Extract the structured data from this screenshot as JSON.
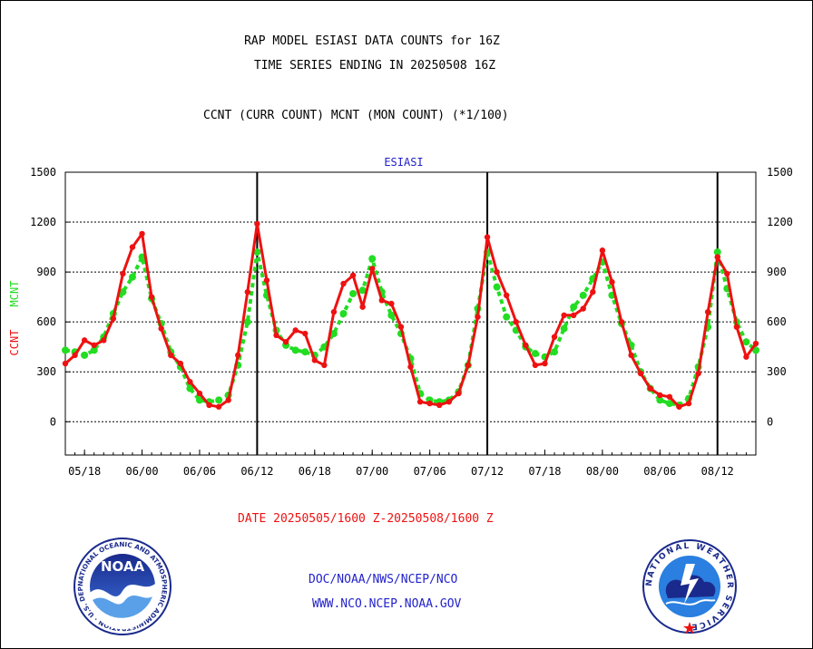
{
  "title_line1": "RAP MODEL ESIASI DATA COUNTS for 16Z",
  "title_line2": "TIME SERIES ENDING IN 20250508 16Z",
  "subtitle": "CCNT (CURR COUNT) MCNT (MON COUNT) (*1/100)",
  "panel_label": "ESIASI",
  "date_range": "DATE 20250505/1600 Z-20250508/1600 Z",
  "footer_line1": "DOC/NOAA/NWS/NCEP/NCO",
  "footer_line2": "WWW.NCO.NCEP.NOAA.GOV",
  "noaa_logo_text": "NOAA",
  "noaa_ring_text": "NATIONAL OCEANIC AND ATMOSPHERIC ADMINISTRATION · U.S. DEPARTMENT OF COMMERCE",
  "nws_ring_text": "NATIONAL WEATHER SERVICE",
  "colors": {
    "ccnt": "#ee1111",
    "mcnt": "#22dd22",
    "axis": "#000000",
    "text_blue": "#2222cc"
  },
  "chart_data": {
    "type": "line",
    "ylim": [
      -200,
      1500
    ],
    "yticks": [
      0,
      300,
      600,
      900,
      1200,
      1500
    ],
    "ylabel_left": [
      {
        "text": "CCNT",
        "color": "#ee1111"
      },
      {
        "text": "MCNT",
        "color": "#22dd22"
      }
    ],
    "x_tick_labels": [
      "05/18",
      "06/00",
      "06/06",
      "06/12",
      "06/18",
      "07/00",
      "07/06",
      "07/12",
      "07/18",
      "08/00",
      "08/06",
      "08/12"
    ],
    "x_tick_hours": [
      2,
      8,
      14,
      20,
      26,
      32,
      38,
      44,
      50,
      56,
      62,
      68
    ],
    "x_range_hours": [
      0,
      72
    ],
    "day_boundaries_hours": [
      20,
      44,
      68
    ],
    "grid": true,
    "series": [
      {
        "name": "CCNT",
        "color": "#ee1111",
        "x": [
          0,
          1,
          2,
          3,
          4,
          5,
          6,
          7,
          8,
          9,
          10,
          11,
          12,
          13,
          14,
          15,
          16,
          17,
          18,
          19,
          20,
          21,
          22,
          23,
          24,
          25,
          26,
          27,
          28,
          29,
          30,
          31,
          32,
          33,
          34,
          35,
          36,
          37,
          38,
          39,
          40,
          41,
          42,
          43,
          44,
          45,
          46,
          47,
          48,
          49,
          50,
          51,
          52,
          53,
          54,
          55,
          56,
          57,
          58,
          59,
          60,
          61,
          62,
          63,
          64,
          65,
          66,
          67,
          68,
          69,
          70,
          71,
          72
        ],
        "values": [
          350,
          400,
          490,
          460,
          490,
          620,
          890,
          1050,
          1130,
          750,
          560,
          400,
          350,
          240,
          170,
          100,
          90,
          130,
          400,
          780,
          1190,
          850,
          520,
          480,
          550,
          530,
          370,
          340,
          660,
          830,
          880,
          690,
          920,
          730,
          710,
          570,
          330,
          120,
          110,
          100,
          120,
          170,
          340,
          630,
          1110,
          900,
          760,
          600,
          460,
          340,
          350,
          510,
          640,
          640,
          680,
          780,
          1030,
          840,
          600,
          400,
          290,
          200,
          160,
          150,
          90,
          110,
          290,
          660,
          990,
          890,
          570,
          390,
          470
        ]
      },
      {
        "name": "MCNT",
        "color": "#22dd22",
        "x": [
          0,
          1,
          2,
          3,
          4,
          5,
          6,
          7,
          8,
          9,
          10,
          11,
          12,
          13,
          14,
          15,
          16,
          17,
          18,
          19,
          20,
          21,
          22,
          23,
          24,
          25,
          26,
          27,
          28,
          29,
          30,
          31,
          32,
          33,
          34,
          35,
          36,
          37,
          38,
          39,
          40,
          41,
          42,
          43,
          44,
          45,
          46,
          47,
          48,
          49,
          50,
          51,
          52,
          53,
          54,
          55,
          56,
          57,
          58,
          59,
          60,
          61,
          62,
          63,
          64,
          65,
          66,
          67,
          68,
          69,
          70,
          71,
          72
        ],
        "values": [
          430,
          420,
          400,
          430,
          510,
          650,
          780,
          870,
          990,
          740,
          590,
          420,
          330,
          200,
          130,
          120,
          130,
          160,
          340,
          600,
          1020,
          760,
          550,
          460,
          430,
          420,
          400,
          450,
          530,
          650,
          770,
          790,
          980,
          780,
          640,
          530,
          380,
          170,
          130,
          120,
          130,
          180,
          340,
          680,
          1020,
          810,
          630,
          550,
          450,
          410,
          390,
          420,
          560,
          690,
          760,
          860,
          960,
          760,
          590,
          460,
          300,
          200,
          130,
          110,
          100,
          140,
          330,
          570,
          1020,
          800,
          600,
          480,
          430
        ]
      }
    ]
  }
}
